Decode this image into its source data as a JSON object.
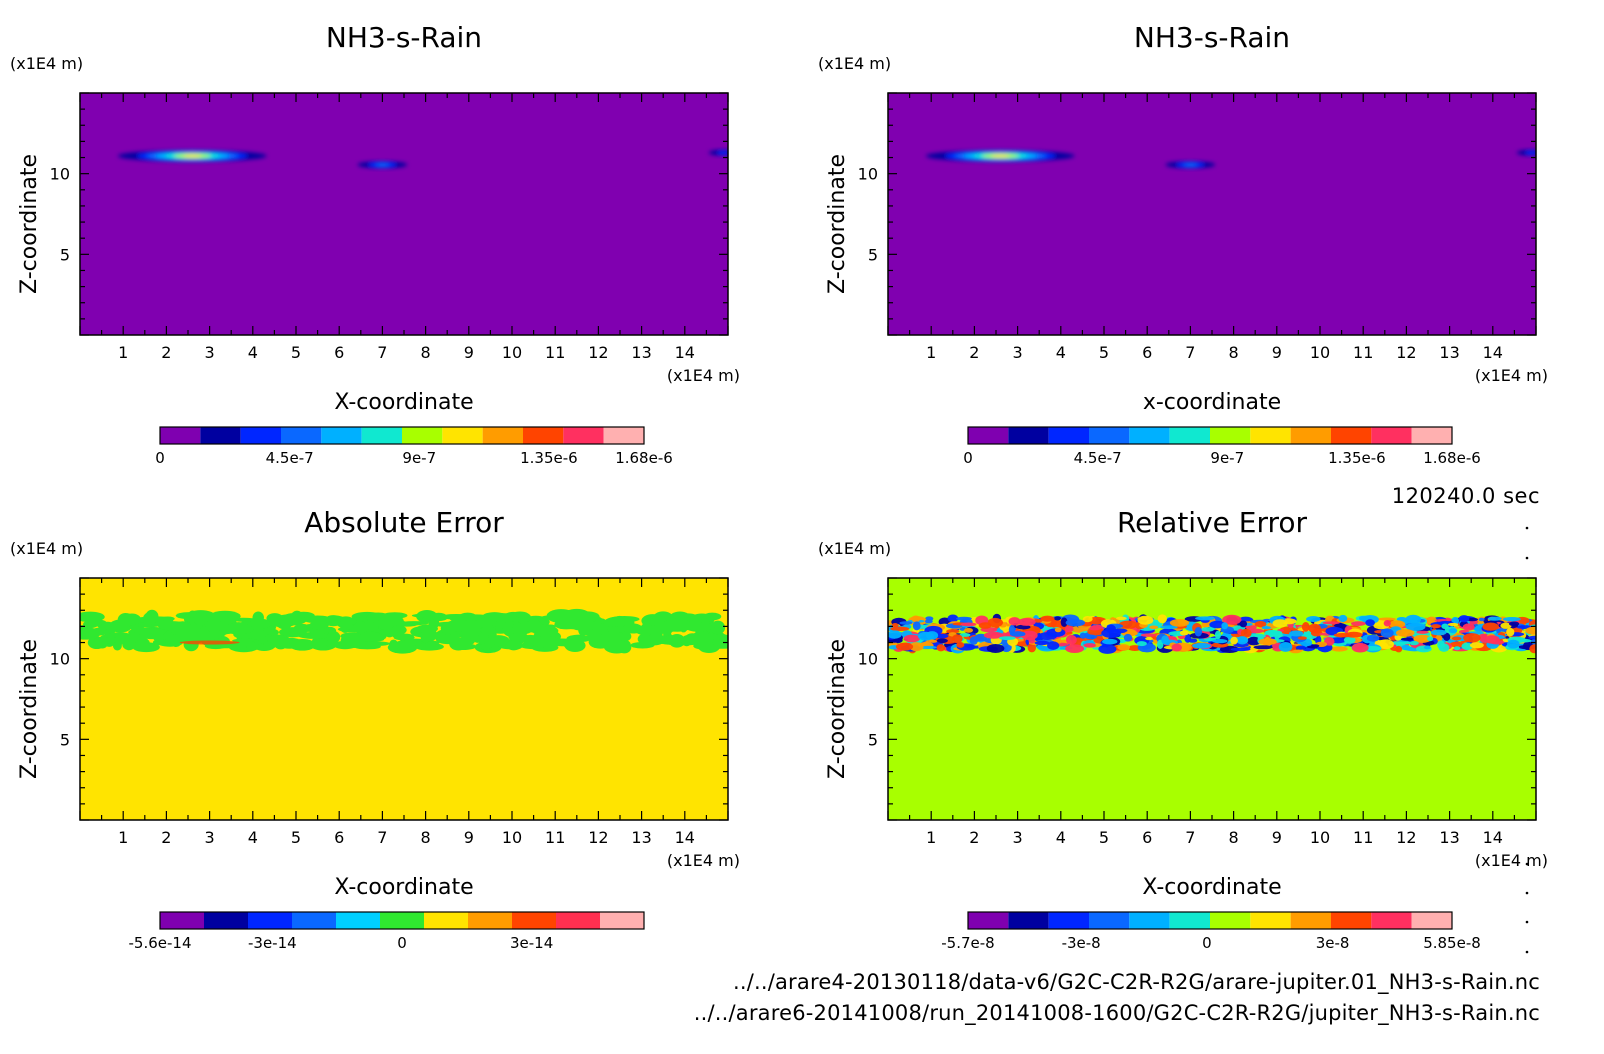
{
  "chart_data": [
    {
      "type": "heatmap",
      "title": "NH3-s-Rain",
      "xlabel": "X-coordinate",
      "ylabel": "Z-coordinate",
      "x_unit": "(x1E4 m)",
      "y_unit": "(x1E4 m)",
      "xlim": [
        0,
        15
      ],
      "ylim": [
        0,
        15
      ],
      "x_ticks": [
        1,
        2,
        3,
        4,
        5,
        6,
        7,
        8,
        9,
        10,
        11,
        12,
        13,
        14
      ],
      "y_ticks": [
        5,
        10
      ],
      "background_color": "#8000b0",
      "colorbar_colors": [
        "#7f00b0",
        "#0000a0",
        "#0026ff",
        "#0a68ff",
        "#00b0ff",
        "#10e8d0",
        "#a8ff00",
        "#ffe400",
        "#ff9c00",
        "#ff4400",
        "#ff3060",
        "#ffb0b0"
      ],
      "colorbar_labels": [
        "0",
        "4.5e-7",
        "9e-7",
        "1.35e-6",
        "1.68e-6"
      ],
      "colorbar_values": [
        0,
        4.5e-07,
        9e-07,
        1.35e-06,
        1.68e-06
      ],
      "colorbar_range": [
        0,
        1.68e-06
      ],
      "features": [
        {
          "kind": "cloud",
          "x": 2.6,
          "z": 11.1,
          "rx": 1.5,
          "rz": 0.35,
          "peak": 1.0
        },
        {
          "kind": "cloud",
          "x": 7.0,
          "z": 10.55,
          "rx": 0.5,
          "rz": 0.22,
          "peak": 0.4
        },
        {
          "kind": "cloud",
          "x": 14.9,
          "z": 11.3,
          "rx": 0.3,
          "rz": 0.18,
          "peak": 0.3
        }
      ]
    },
    {
      "type": "heatmap",
      "title": "NH3-s-Rain",
      "xlabel": "x-coordinate",
      "ylabel": "Z-coordinate",
      "x_unit": "(x1E4 m)",
      "y_unit": "(x1E4 m)",
      "xlim": [
        0,
        15
      ],
      "ylim": [
        0,
        15
      ],
      "x_ticks": [
        1,
        2,
        3,
        4,
        5,
        6,
        7,
        8,
        9,
        10,
        11,
        12,
        13,
        14
      ],
      "y_ticks": [
        5,
        10
      ],
      "background_color": "#8000b0",
      "colorbar_colors": [
        "#7f00b0",
        "#0000a0",
        "#0026ff",
        "#0a68ff",
        "#00b0ff",
        "#10e8d0",
        "#a8ff00",
        "#ffe400",
        "#ff9c00",
        "#ff4400",
        "#ff3060",
        "#ffb0b0"
      ],
      "colorbar_labels": [
        "0",
        "4.5e-7",
        "9e-7",
        "1.35e-6",
        "1.68e-6"
      ],
      "colorbar_values": [
        0,
        4.5e-07,
        9e-07,
        1.35e-06,
        1.68e-06
      ],
      "colorbar_range": [
        0,
        1.68e-06
      ],
      "features": [
        {
          "kind": "cloud",
          "x": 2.6,
          "z": 11.1,
          "rx": 1.5,
          "rz": 0.35,
          "peak": 1.0
        },
        {
          "kind": "cloud",
          "x": 7.0,
          "z": 10.55,
          "rx": 0.5,
          "rz": 0.22,
          "peak": 0.4
        },
        {
          "kind": "cloud",
          "x": 14.9,
          "z": 11.3,
          "rx": 0.3,
          "rz": 0.18,
          "peak": 0.3
        }
      ]
    },
    {
      "type": "heatmap",
      "title": "Absolute Error",
      "xlabel": "X-coordinate",
      "ylabel": "Z-coordinate",
      "x_unit": "(x1E4 m)",
      "y_unit": "(x1E4 m)",
      "xlim": [
        0,
        15
      ],
      "ylim": [
        0,
        15
      ],
      "x_ticks": [
        1,
        2,
        3,
        4,
        5,
        6,
        7,
        8,
        9,
        10,
        11,
        12,
        13,
        14
      ],
      "y_ticks": [
        5,
        10
      ],
      "background_color": "#ffe400",
      "colorbar_colors": [
        "#7f00b0",
        "#0000a0",
        "#0026ff",
        "#0a68ff",
        "#00d0ff",
        "#30e830",
        "#ffe400",
        "#ff9c00",
        "#ff4400",
        "#ff3050",
        "#ffb0b0"
      ],
      "colorbar_labels": [
        "-5.6e-14",
        "-3e-14",
        "0",
        "3e-14"
      ],
      "colorbar_values": [
        -5.6e-14,
        -3e-14,
        0,
        3e-14
      ],
      "colorbar_range": [
        -5.6e-14,
        5.6e-14
      ],
      "band": {
        "z_min": 10.3,
        "z_max": 13.3,
        "color": "#30e830"
      }
    },
    {
      "type": "heatmap",
      "title": "Relative Error",
      "xlabel": "X-coordinate",
      "ylabel": "Z-coordinate",
      "x_unit": "(x1E4 m)",
      "y_unit": "(x1E4 m)",
      "xlim": [
        0,
        15
      ],
      "ylim": [
        0,
        15
      ],
      "x_ticks": [
        1,
        2,
        3,
        4,
        5,
        6,
        7,
        8,
        9,
        10,
        11,
        12,
        13,
        14
      ],
      "y_ticks": [
        5,
        10
      ],
      "background_color": "#a8ff00",
      "colorbar_colors": [
        "#7f00b0",
        "#0000a0",
        "#0026ff",
        "#0a68ff",
        "#00b0ff",
        "#10e8d0",
        "#a8ff00",
        "#ffe400",
        "#ff9c00",
        "#ff4400",
        "#ff3060",
        "#ffb0b0"
      ],
      "colorbar_labels": [
        "-5.7e-8",
        "-3e-8",
        "0",
        "3e-8",
        "5.85e-8"
      ],
      "colorbar_values": [
        -5.7e-08,
        -3e-08,
        0,
        3e-08,
        5.85e-08
      ],
      "colorbar_range": [
        -5.7e-08,
        5.85e-08
      ],
      "band": {
        "z_min": 10.2,
        "z_max": 13.0,
        "color": "mixed"
      }
    }
  ],
  "time_label": "120240.0 sec",
  "footer": {
    "line1": "../../arare4-20130118/data-v6/G2C-C2R-R2G/arare-jupiter.01_NH3-s-Rain.nc",
    "line2": "../../arare6-20141008/run_20141008-1600/G2C-C2R-R2G/jupiter_NH3-s-Rain.nc"
  }
}
